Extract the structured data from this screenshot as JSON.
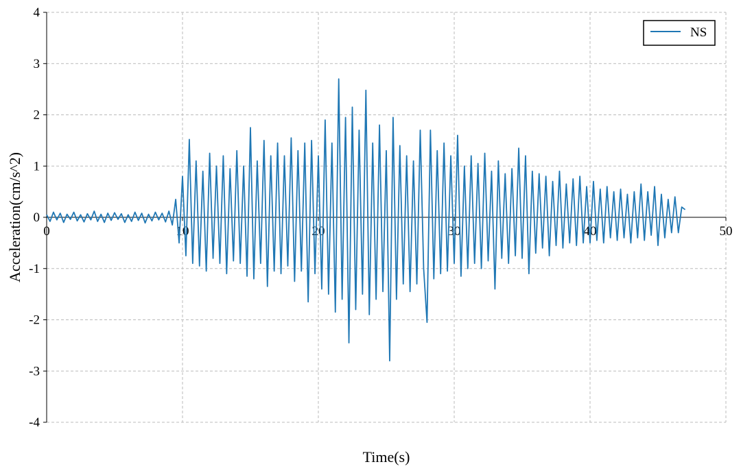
{
  "chart_data": {
    "type": "line",
    "xlabel": "Time(s)",
    "ylabel": "Acceleration(cm/s^2)",
    "xlim": [
      0,
      50
    ],
    "ylim": [
      -4,
      4
    ],
    "xticks": [
      0,
      10,
      20,
      30,
      40,
      50
    ],
    "yticks": [
      -4,
      -3,
      -2,
      -1,
      0,
      1,
      2,
      3,
      4
    ],
    "grid": true,
    "legend": "upper right",
    "x": [
      0,
      0.25,
      0.5,
      0.75,
      1,
      1.25,
      1.5,
      1.75,
      2,
      2.25,
      2.5,
      2.75,
      3,
      3.25,
      3.5,
      3.75,
      4,
      4.25,
      4.5,
      4.75,
      5,
      5.25,
      5.5,
      5.75,
      6,
      6.25,
      6.5,
      6.75,
      7,
      7.25,
      7.5,
      7.75,
      8,
      8.25,
      8.5,
      8.75,
      9,
      9.25,
      9.5,
      9.75,
      10,
      10.25,
      10.5,
      10.75,
      11,
      11.25,
      11.5,
      11.75,
      12,
      12.25,
      12.5,
      12.75,
      13,
      13.25,
      13.5,
      13.75,
      14,
      14.25,
      14.5,
      14.75,
      15,
      15.25,
      15.5,
      15.75,
      16,
      16.25,
      16.5,
      16.75,
      17,
      17.25,
      17.5,
      17.75,
      18,
      18.25,
      18.5,
      18.75,
      19,
      19.25,
      19.5,
      19.75,
      20,
      20.25,
      20.5,
      20.75,
      21,
      21.25,
      21.5,
      21.75,
      22,
      22.25,
      22.5,
      22.75,
      23,
      23.25,
      23.5,
      23.75,
      24,
      24.25,
      24.5,
      24.75,
      25,
      25.25,
      25.5,
      25.75,
      26,
      26.25,
      26.5,
      26.75,
      27,
      27.25,
      27.5,
      27.75,
      28,
      28.25,
      28.5,
      28.75,
      29,
      29.25,
      29.5,
      29.75,
      30,
      30.25,
      30.5,
      30.75,
      31,
      31.25,
      31.5,
      31.75,
      32,
      32.25,
      32.5,
      32.75,
      33,
      33.25,
      33.5,
      33.75,
      34,
      34.25,
      34.5,
      34.75,
      35,
      35.25,
      35.5,
      35.75,
      36,
      36.25,
      36.5,
      36.75,
      37,
      37.25,
      37.5,
      37.75,
      38,
      38.25,
      38.5,
      38.75,
      39,
      39.25,
      39.5,
      39.75,
      40,
      40.25,
      40.5,
      40.75,
      41,
      41.25,
      41.5,
      41.75,
      42,
      42.25,
      42.5,
      42.75,
      43,
      43.25,
      43.5,
      43.75,
      44,
      44.25,
      44.5,
      44.75,
      45,
      45.25,
      45.5,
      45.75,
      46,
      46.25,
      46.5,
      46.75,
      47
    ],
    "series": [
      {
        "name": "NS",
        "color": "#1f77b4",
        "values": [
          0.05,
          -0.08,
          0.1,
          -0.05,
          0.08,
          -0.1,
          0.06,
          -0.04,
          0.1,
          -0.07,
          0.05,
          -0.09,
          0.07,
          -0.05,
          0.12,
          -0.08,
          0.06,
          -0.1,
          0.08,
          -0.06,
          0.09,
          -0.04,
          0.07,
          -0.1,
          0.05,
          -0.08,
          0.1,
          -0.06,
          0.08,
          -0.11,
          0.06,
          -0.07,
          0.1,
          -0.05,
          0.08,
          -0.09,
          0.12,
          -0.15,
          0.35,
          -0.5,
          0.8,
          -0.75,
          1.52,
          -0.9,
          1.1,
          -0.95,
          0.9,
          -1.05,
          1.25,
          -0.8,
          1.0,
          -0.9,
          1.2,
          -1.1,
          0.95,
          -0.85,
          1.3,
          -0.9,
          1.0,
          -1.15,
          1.75,
          -1.2,
          1.1,
          -0.9,
          1.5,
          -1.35,
          1.2,
          -1.05,
          1.45,
          -1.1,
          1.2,
          -0.95,
          1.55,
          -1.25,
          1.3,
          -1.05,
          1.45,
          -1.65,
          1.5,
          -1.1,
          1.2,
          -1.4,
          1.9,
          -1.5,
          1.45,
          -1.85,
          2.7,
          -1.6,
          1.95,
          -2.45,
          2.15,
          -1.8,
          1.7,
          -1.5,
          2.48,
          -1.9,
          1.45,
          -1.6,
          1.8,
          -1.45,
          1.3,
          -2.8,
          1.95,
          -1.6,
          1.4,
          -1.3,
          1.2,
          -1.45,
          1.1,
          -1.3,
          1.7,
          -1.0,
          -2.05,
          1.7,
          -1.2,
          1.3,
          -1.1,
          1.45,
          -1.05,
          1.2,
          -0.9,
          1.6,
          -1.15,
          1.0,
          -1.0,
          1.2,
          -0.9,
          1.05,
          -1.0,
          1.25,
          -0.85,
          0.9,
          -1.4,
          1.1,
          -0.8,
          0.85,
          -0.9,
          0.95,
          -0.75,
          1.35,
          -0.8,
          1.2,
          -1.1,
          0.9,
          -0.7,
          0.85,
          -0.6,
          0.8,
          -0.75,
          0.7,
          -0.55,
          0.9,
          -0.6,
          0.65,
          -0.5,
          0.75,
          -0.55,
          0.8,
          -0.5,
          0.6,
          -0.5,
          0.7,
          -0.45,
          0.55,
          -0.5,
          0.6,
          -0.4,
          0.5,
          -0.45,
          0.55,
          -0.4,
          0.45,
          -0.5,
          0.5,
          -0.4,
          0.65,
          -0.45,
          0.5,
          -0.35,
          0.6,
          -0.55,
          0.45,
          -0.4,
          0.35,
          -0.3,
          0.4,
          -0.3,
          0.2,
          0.15
        ]
      }
    ]
  }
}
